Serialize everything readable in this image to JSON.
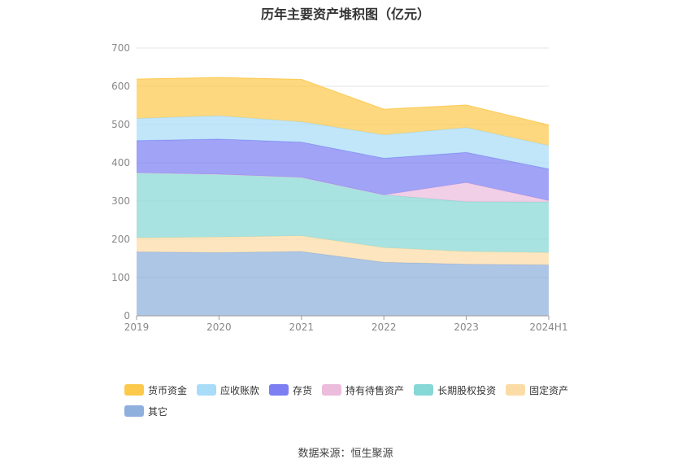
{
  "page": {
    "title": "历年主要资产堆积图（亿元）",
    "source": "数据来源：恒生聚源"
  },
  "chart_data": {
    "type": "area",
    "stacked": true,
    "title": "历年主要资产堆积图（亿元）",
    "categories": [
      "2019",
      "2020",
      "2021",
      "2022",
      "2023",
      "2024H1"
    ],
    "ylim": [
      0,
      700
    ],
    "yticks": [
      0,
      100,
      200,
      300,
      400,
      500,
      600,
      700
    ],
    "grid": true,
    "legend_position": "bottom",
    "series": [
      {
        "name": "其它",
        "color": "#8fb0dc",
        "values": [
          167,
          165,
          168,
          140,
          135,
          133
        ]
      },
      {
        "name": "固定资产",
        "color": "#fcdca6",
        "values": [
          37,
          41,
          41,
          38,
          33,
          32
        ]
      },
      {
        "name": "长期股权投资",
        "color": "#86d8d6",
        "values": [
          170,
          164,
          153,
          138,
          130,
          132
        ]
      },
      {
        "name": "持有待售资产",
        "color": "#ecbcdd",
        "values": [
          0,
          0,
          0,
          0,
          50,
          4
        ]
      },
      {
        "name": "存货",
        "color": "#7c7ff2",
        "values": [
          84,
          92,
          92,
          96,
          79,
          83
        ]
      },
      {
        "name": "应收账款",
        "color": "#a9dcf8",
        "values": [
          58,
          61,
          53,
          61,
          65,
          61
        ]
      },
      {
        "name": "货币资金",
        "color": "#fcc94c",
        "values": [
          103,
          100,
          111,
          67,
          59,
          54
        ]
      }
    ],
    "legend_order": [
      "货币资金",
      "应收账款",
      "存货",
      "持有待售资产",
      "长期股权投资",
      "固定资产",
      "其它"
    ]
  }
}
